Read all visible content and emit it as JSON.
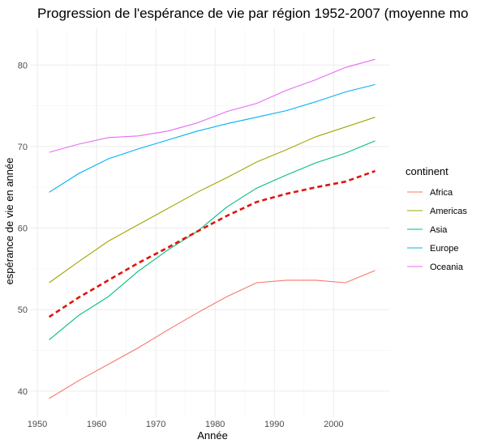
{
  "chart_data": {
    "type": "line",
    "title": "Progression de l'espérance de vie par région 1952-2007 (moyenne mo",
    "xlabel": "Année",
    "ylabel": "espérance de vie en année",
    "xlim": [
      1952,
      2007
    ],
    "ylim": [
      38.5,
      82
    ],
    "x": [
      1952,
      1957,
      1962,
      1967,
      1972,
      1977,
      1982,
      1987,
      1992,
      1997,
      2002,
      2007
    ],
    "x_ticks": [
      1950,
      1960,
      1970,
      1980,
      1990,
      2000
    ],
    "y_ticks": [
      40,
      50,
      60,
      70,
      80
    ],
    "grid": true,
    "legend": {
      "title": "continent",
      "position": "right"
    },
    "series": [
      {
        "name": "Africa",
        "color": "#F8766D",
        "values": [
          39.1,
          41.3,
          43.3,
          45.3,
          47.5,
          49.6,
          51.6,
          53.3,
          53.6,
          53.6,
          53.3,
          54.8
        ]
      },
      {
        "name": "Americas",
        "color": "#A3A500",
        "values": [
          53.3,
          55.9,
          58.4,
          60.4,
          62.4,
          64.4,
          66.2,
          68.1,
          69.6,
          71.2,
          72.4,
          73.6
        ]
      },
      {
        "name": "Asia",
        "color": "#00BF7D",
        "values": [
          46.3,
          49.3,
          51.6,
          54.7,
          57.3,
          59.6,
          62.6,
          64.9,
          66.5,
          68.0,
          69.2,
          70.7
        ]
      },
      {
        "name": "Europe",
        "color": "#00B0F6",
        "values": [
          64.4,
          66.7,
          68.5,
          69.7,
          70.8,
          71.9,
          72.8,
          73.6,
          74.4,
          75.5,
          76.7,
          77.6
        ]
      },
      {
        "name": "Oceania",
        "color": "#E76BF3",
        "values": [
          69.3,
          70.3,
          71.1,
          71.3,
          71.9,
          72.9,
          74.3,
          75.3,
          76.9,
          78.2,
          79.7,
          80.7
        ]
      }
    ],
    "world_mean": {
      "color": "#E0140E",
      "style": "dashed",
      "values": [
        49.1,
        51.5,
        53.6,
        55.7,
        57.6,
        59.6,
        61.5,
        63.2,
        64.2,
        65.0,
        65.7,
        67.0
      ]
    }
  }
}
